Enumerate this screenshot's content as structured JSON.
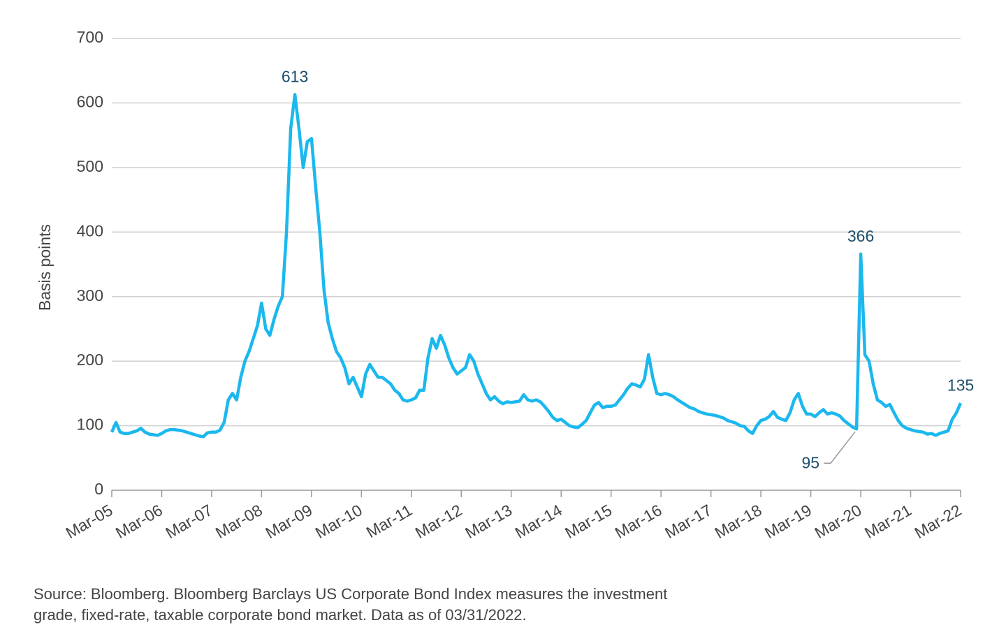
{
  "chart_data": {
    "type": "line",
    "y_label": "Basis points",
    "note": "Source: Bloomberg. Bloomberg Barclays US Corporate Bond Index measures the investment grade, fixed-rate, taxable corporate bond market. Data as of 03/31/2022.",
    "color": "#1bb8ee",
    "grid": true,
    "ylim": [
      0,
      700
    ],
    "yticks": [
      0,
      100,
      200,
      300,
      400,
      500,
      600,
      700
    ],
    "annotations": [
      613,
      366,
      95,
      135
    ],
    "categories": [
      "Mar-05",
      null,
      null,
      null,
      null,
      null,
      null,
      null,
      null,
      null,
      null,
      null,
      "Mar-06",
      null,
      null,
      null,
      null,
      null,
      null,
      null,
      null,
      null,
      null,
      null,
      "Mar-07",
      null,
      null,
      null,
      null,
      null,
      null,
      null,
      null,
      null,
      null,
      null,
      "Mar-08",
      null,
      null,
      null,
      null,
      null,
      null,
      null,
      null,
      null,
      null,
      null,
      "Mar-09",
      null,
      null,
      null,
      null,
      null,
      null,
      null,
      null,
      null,
      null,
      null,
      "Mar-10",
      null,
      null,
      null,
      null,
      null,
      null,
      null,
      null,
      null,
      null,
      null,
      "Mar-11",
      null,
      null,
      null,
      null,
      null,
      null,
      null,
      null,
      null,
      null,
      null,
      "Mar-12",
      null,
      null,
      null,
      null,
      null,
      null,
      null,
      null,
      null,
      null,
      null,
      "Mar-13",
      null,
      null,
      null,
      null,
      null,
      null,
      null,
      null,
      null,
      null,
      null,
      "Mar-14",
      null,
      null,
      null,
      null,
      null,
      null,
      null,
      null,
      null,
      null,
      null,
      "Mar-15",
      null,
      null,
      null,
      null,
      null,
      null,
      null,
      null,
      null,
      null,
      null,
      "Mar-16",
      null,
      null,
      null,
      null,
      null,
      null,
      null,
      null,
      null,
      null,
      null,
      "Mar-17",
      null,
      null,
      null,
      null,
      null,
      null,
      null,
      null,
      null,
      null,
      null,
      "Mar-18",
      null,
      null,
      null,
      null,
      null,
      null,
      null,
      null,
      null,
      null,
      null,
      "Mar-19",
      null,
      null,
      null,
      null,
      null,
      null,
      null,
      null,
      null,
      null,
      null,
      "Mar-20",
      null,
      null,
      null,
      null,
      null,
      null,
      null,
      null,
      null,
      null,
      null,
      "Mar-21",
      null,
      null,
      null,
      null,
      null,
      null,
      null,
      null,
      null,
      null,
      null,
      "Mar-22"
    ],
    "values": [
      90,
      105,
      90,
      88,
      88,
      90,
      92,
      96,
      90,
      87,
      86,
      85,
      88,
      92,
      94,
      94,
      93,
      92,
      90,
      88,
      86,
      84,
      83,
      89,
      90,
      90,
      93,
      105,
      140,
      150,
      140,
      175,
      200,
      215,
      235,
      255,
      290,
      250,
      240,
      265,
      285,
      300,
      400,
      560,
      613,
      560,
      500,
      540,
      545,
      470,
      400,
      310,
      260,
      235,
      215,
      205,
      190,
      165,
      175,
      160,
      145,
      180,
      195,
      185,
      175,
      175,
      170,
      165,
      155,
      150,
      140,
      138,
      140,
      143,
      155,
      155,
      205,
      235,
      220,
      240,
      225,
      205,
      190,
      180,
      185,
      190,
      210,
      200,
      180,
      165,
      150,
      140,
      145,
      138,
      134,
      137,
      136,
      137,
      138,
      148,
      140,
      138,
      140,
      137,
      130,
      122,
      113,
      108,
      110,
      105,
      100,
      98,
      97,
      102,
      108,
      120,
      132,
      136,
      128,
      130,
      130,
      132,
      140,
      148,
      158,
      165,
      163,
      160,
      172,
      210,
      175,
      150,
      148,
      150,
      148,
      145,
      140,
      136,
      132,
      128,
      126,
      122,
      120,
      118,
      117,
      116,
      114,
      112,
      108,
      106,
      104,
      100,
      99,
      92,
      88,
      100,
      108,
      110,
      114,
      122,
      113,
      110,
      108,
      120,
      140,
      150,
      130,
      118,
      118,
      114,
      120,
      125,
      118,
      120,
      118,
      115,
      108,
      103,
      98,
      95,
      366,
      210,
      200,
      165,
      140,
      136,
      130,
      133,
      120,
      108,
      100,
      96,
      94,
      92,
      91,
      90,
      87,
      88,
      85,
      88,
      90,
      92,
      110,
      120,
      135
    ]
  }
}
